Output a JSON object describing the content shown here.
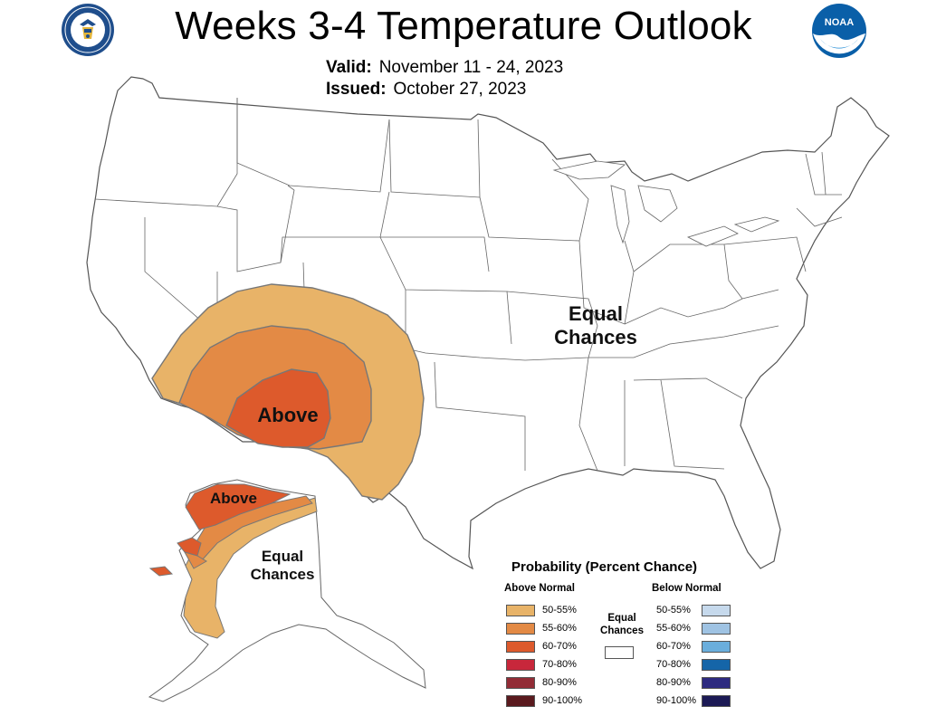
{
  "header": {
    "title": "Weeks 3-4 Temperature Outlook",
    "valid_label": "Valid:",
    "valid_value": "November 11 - 24, 2023",
    "issued_label": "Issued:",
    "issued_value": "October 27, 2023"
  },
  "logos": {
    "seal_icon": "department-of-commerce-seal",
    "noaa_icon": "noaa-logo",
    "noaa_text": "NOAA"
  },
  "map_labels": {
    "conus_above": "Above",
    "conus_equal_line1": "Equal",
    "conus_equal_line2": "Chances",
    "alaska_above": "Above",
    "alaska_equal_line1": "Equal",
    "alaska_equal_line2": "Chances"
  },
  "legend": {
    "title": "Probability (Percent Chance)",
    "above_header": "Above Normal",
    "below_header": "Below Normal",
    "equal_line1": "Equal",
    "equal_line2": "Chances",
    "above": [
      {
        "label": "50-55%",
        "color": "#e8b368"
      },
      {
        "label": "55-60%",
        "color": "#e38a45"
      },
      {
        "label": "60-70%",
        "color": "#dd5a2c"
      },
      {
        "label": "70-80%",
        "color": "#c8273b"
      },
      {
        "label": "80-90%",
        "color": "#922c36"
      },
      {
        "label": "90-100%",
        "color": "#5a1a1e"
      }
    ],
    "below": [
      {
        "label": "50-55%",
        "color": "#c6d9ec"
      },
      {
        "label": "55-60%",
        "color": "#9fc3e3"
      },
      {
        "label": "60-70%",
        "color": "#6aaedc"
      },
      {
        "label": "70-80%",
        "color": "#1565a8"
      },
      {
        "label": "80-90%",
        "color": "#2d2a80"
      },
      {
        "label": "90-100%",
        "color": "#1c1a55"
      }
    ]
  }
}
